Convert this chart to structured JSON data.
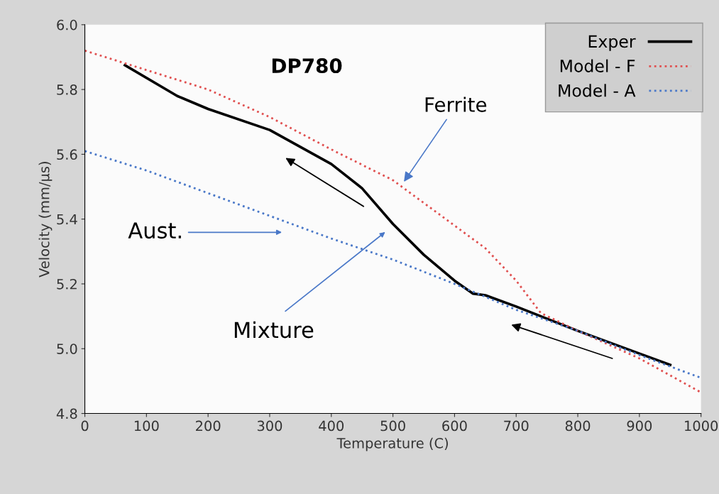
{
  "chart_data": {
    "type": "line",
    "xlabel": "Temperature (C)",
    "ylabel": "Velocity (mm/µs)",
    "xlim": [
      0,
      1000
    ],
    "xticks": [
      0,
      100,
      200,
      300,
      400,
      500,
      600,
      700,
      800,
      900,
      1000
    ],
    "ylim": [
      4.8,
      6.0
    ],
    "yticks": [
      4.8,
      {
        "value": 5,
        "label": "5.0"
      },
      5.2,
      5.4,
      5.6,
      5.8,
      {
        "value": 6,
        "label": "6.0"
      }
    ],
    "grid": false,
    "legend": "top right",
    "marker": "none",
    "series": [
      {
        "name": "Exper",
        "color": "#000000",
        "line_style": "solid",
        "x": [
          65,
          150,
          200,
          300,
          400,
          450,
          500,
          550,
          600,
          630,
          650,
          700,
          800,
          900,
          950
        ],
        "values": [
          5.875,
          5.78,
          5.74,
          5.675,
          5.57,
          5.495,
          5.385,
          5.29,
          5.21,
          5.17,
          5.165,
          5.13,
          5.055,
          4.985,
          4.95
        ]
      },
      {
        "name": "Model - F",
        "color": "#e05050",
        "line_style": "dotted",
        "x": [
          0,
          100,
          200,
          300,
          400,
          500,
          550,
          600,
          650,
          700,
          740,
          800,
          900,
          1000
        ],
        "values": [
          5.92,
          5.86,
          5.8,
          5.715,
          5.615,
          5.52,
          5.45,
          5.38,
          5.31,
          5.21,
          5.11,
          5.055,
          4.97,
          4.865
        ]
      },
      {
        "name": "Model - A",
        "color": "#4a78c8",
        "line_style": "dotted",
        "x": [
          0,
          100,
          200,
          300,
          400,
          500,
          600,
          700,
          800,
          900,
          1000
        ],
        "values": [
          5.61,
          5.55,
          5.48,
          5.41,
          5.34,
          5.275,
          5.2,
          5.12,
          5.055,
          4.98,
          4.91
        ]
      }
    ],
    "annotations": [
      "DP780",
      {
        "text": "Ferrite",
        "x": 516,
        "y": 5.51
      },
      "Aust.",
      "Mixture"
    ]
  }
}
